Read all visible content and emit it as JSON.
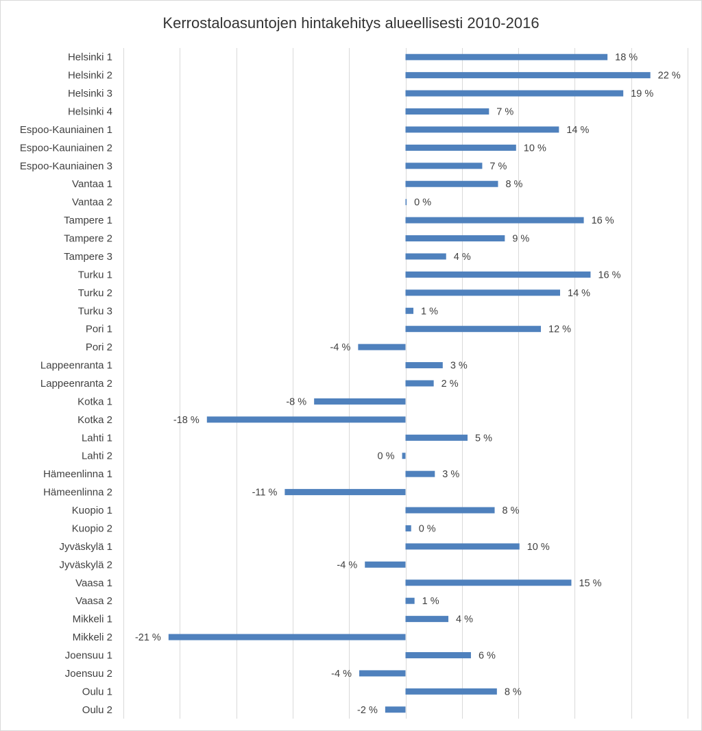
{
  "chart_data": {
    "type": "bar",
    "orientation": "horizontal",
    "title": "Kerrostaloasuntojen hintakehitys alueellisesti 2010-2016",
    "xlabel": "",
    "ylabel": "",
    "xlim": [
      -25,
      25
    ],
    "grid": true,
    "legend": "none",
    "categories": [
      "Helsinki 1",
      "Helsinki 2",
      "Helsinki 3",
      "Helsinki 4",
      "Espoo-Kauniainen 1",
      "Espoo-Kauniainen 2",
      "Espoo-Kauniainen 3",
      "Vantaa 1",
      "Vantaa 2",
      "Tampere 1",
      "Tampere 2",
      "Tampere 3",
      "Turku 1",
      "Turku 2",
      "Turku 3",
      "Pori 1",
      "Pori 2",
      "Lappeenranta 1",
      "Lappeenranta 2",
      "Kotka 1",
      "Kotka 2",
      "Lahti 1",
      "Lahti 2",
      "Hämeenlinna 1",
      "Hämeenlinna 2",
      "Kuopio 1",
      "Kuopio 2",
      "Jyväskylä 1",
      "Jyväskylä 2",
      "Vaasa 1",
      "Vaasa 2",
      "Mikkeli 1",
      "Mikkeli 2",
      "Joensuu 1",
      "Joensuu 2",
      "Oulu 1",
      "Oulu 2"
    ],
    "values": [
      17.9,
      21.7,
      19.3,
      7.4,
      13.6,
      9.8,
      6.8,
      8.2,
      0.1,
      15.8,
      8.8,
      3.6,
      16.4,
      13.7,
      0.7,
      12.0,
      -4.2,
      3.3,
      2.5,
      -8.1,
      -17.6,
      5.5,
      -0.3,
      2.6,
      -10.7,
      7.9,
      0.5,
      10.1,
      -3.6,
      14.7,
      0.8,
      3.8,
      -21.0,
      5.8,
      -4.1,
      8.1,
      -1.8
    ],
    "labels": [
      "18 %",
      "22 %",
      "19 %",
      "7 %",
      "14 %",
      "10 %",
      "7 %",
      "8 %",
      "0 %",
      "16 %",
      "9 %",
      "4 %",
      "16 %",
      "14 %",
      "1 %",
      "12 %",
      "-4 %",
      "3 %",
      "2 %",
      "-8 %",
      "-18 %",
      "5 %",
      "0 %",
      "3 %",
      "-11 %",
      "8 %",
      "0 %",
      "10 %",
      "-4 %",
      "15 %",
      "1 %",
      "4 %",
      "-21 %",
      "6 %",
      "-4 %",
      "8 %",
      "-2 %"
    ],
    "bar_color": "#4f81bd",
    "grid_color": "#d9d9d9"
  }
}
